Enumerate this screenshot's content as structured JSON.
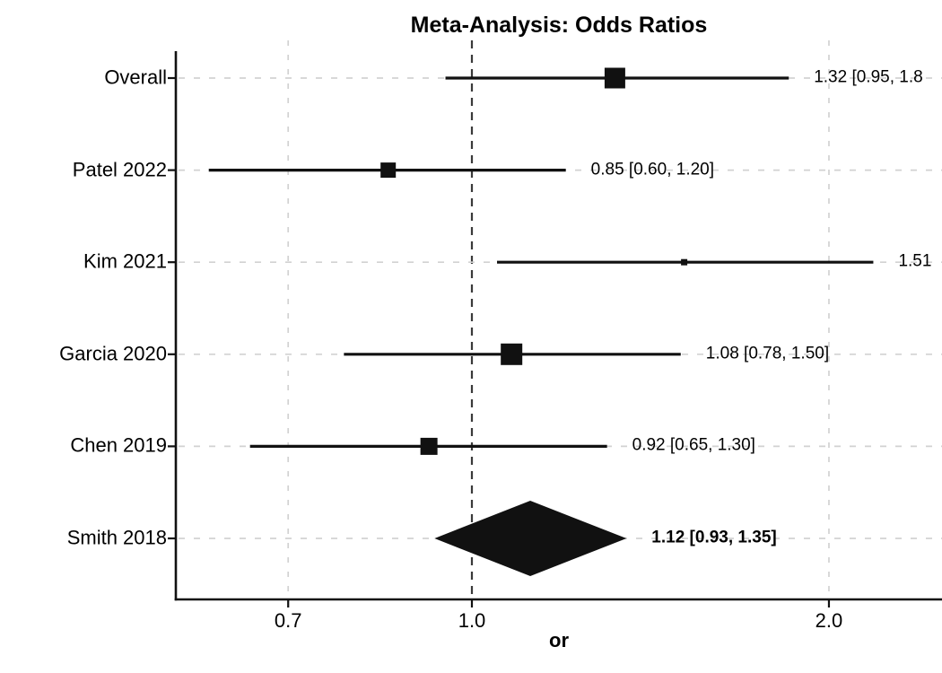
{
  "chart_data": {
    "type": "forest",
    "title": "Meta-Analysis: Odds Ratios",
    "xlabel": "or",
    "x_scale": "log",
    "x_ticks": [
      "0.7",
      "1.0",
      "2.0"
    ],
    "x_tick_values": [
      0.7,
      1.0,
      2.0
    ],
    "reference_line": 1.0,
    "xlim": [
      0.56,
      2.49
    ],
    "grid": "dashed",
    "legend": "none",
    "colors": {
      "ink": "#111111",
      "grid_light": "#D2D2D2",
      "reference": "#3A3A3A",
      "text": "#000000"
    },
    "studies": [
      {
        "label": "Overall",
        "estimate": 1.32,
        "ci_low": 0.95,
        "ci_high": 1.85,
        "annotation": "1.32 [0.95, 1.8",
        "annotation_clipped": true,
        "marker": "square",
        "marker_size": 23,
        "bold": false
      },
      {
        "label": "Patel 2022",
        "estimate": 0.85,
        "ci_low": 0.6,
        "ci_high": 1.2,
        "annotation": "0.85 [0.60, 1.20]",
        "annotation_clipped": false,
        "marker": "square",
        "marker_size": 17,
        "bold": false
      },
      {
        "label": "Kim 2021",
        "estimate": 1.51,
        "ci_low": 1.05,
        "ci_high": 2.18,
        "annotation": "1.51",
        "annotation_clipped": true,
        "marker": "square",
        "marker_size": 7,
        "bold": false
      },
      {
        "label": "Garcia 2020",
        "estimate": 1.08,
        "ci_low": 0.78,
        "ci_high": 1.5,
        "annotation": "1.08 [0.78, 1.50]",
        "annotation_clipped": false,
        "marker": "square",
        "marker_size": 24,
        "bold": false
      },
      {
        "label": "Chen 2019",
        "estimate": 0.92,
        "ci_low": 0.65,
        "ci_high": 1.3,
        "annotation": "0.92 [0.65, 1.30]",
        "annotation_clipped": false,
        "marker": "square",
        "marker_size": 19,
        "bold": false
      },
      {
        "label": "Smith 2018",
        "estimate": 1.12,
        "ci_low": 0.93,
        "ci_high": 1.35,
        "annotation": "1.12 [0.93, 1.35]",
        "annotation_clipped": false,
        "marker": "diamond",
        "diamond_half_height": 42,
        "bold": true
      }
    ]
  }
}
